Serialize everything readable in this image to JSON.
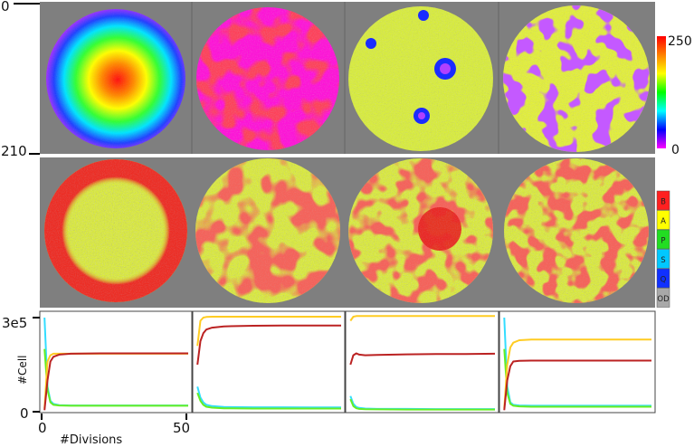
{
  "axis_labels": {
    "top_tick_0": "0",
    "top_tick_210": "210",
    "bottom_tick_3e5": "3e5",
    "bottom_tick_0": "0",
    "ylabel": "#Cell",
    "xlabel": "#Divisions",
    "x_tick_0": "0",
    "x_tick_50": "50"
  },
  "colorbar": {
    "max_label": "250",
    "min_label": "0",
    "stops": [
      "#ff00ff",
      "#0000ff",
      "#00ffff",
      "#00ff00",
      "#ffff00",
      "#ff8000",
      "#ff0000"
    ]
  },
  "category_legend": {
    "items": [
      {
        "label": "B",
        "color": "#ff2020"
      },
      {
        "label": "A",
        "color": "#ffff00"
      },
      {
        "label": "P",
        "color": "#22dd22"
      },
      {
        "label": "S",
        "color": "#00c8ff"
      },
      {
        "label": "Q",
        "color": "#1030ff"
      },
      {
        "label": "OD",
        "color": "#a8a8a8"
      }
    ]
  },
  "colors": {
    "panel_bg": "#7f7f7f",
    "S": "#33ddff",
    "P": "#66ee22",
    "A": "#ffcc22",
    "B": "#bb2222"
  },
  "chart_data": [
    {
      "type": "line",
      "panel": 1,
      "xlim": [
        0,
        50
      ],
      "ylim": [
        0,
        300000
      ],
      "legend": [
        "S",
        "P",
        "A",
        "B"
      ],
      "legend_position": "top-right",
      "series": [
        {
          "name": "S",
          "x": [
            1,
            2,
            3,
            4,
            6,
            10,
            20,
            30,
            40,
            50
          ],
          "y": [
            300000,
            80000,
            35000,
            25000,
            21000,
            20000,
            20000,
            20000,
            20000,
            20000
          ]
        },
        {
          "name": "P",
          "x": [
            1,
            2,
            3,
            4,
            6,
            10,
            20,
            30,
            40,
            50
          ],
          "y": [
            200000,
            70000,
            30000,
            22000,
            20000,
            19000,
            19000,
            19000,
            19000,
            19000
          ]
        },
        {
          "name": "A",
          "x": [
            1,
            2,
            3,
            4,
            6,
            10,
            20,
            30,
            40,
            50
          ],
          "y": [
            10000,
            160000,
            180000,
            185000,
            185000,
            185000,
            185000,
            185000,
            185000,
            185000
          ]
        },
        {
          "name": "B",
          "x": [
            1,
            2,
            3,
            4,
            6,
            10,
            20,
            30,
            40,
            50
          ],
          "y": [
            5000,
            100000,
            160000,
            175000,
            182000,
            185000,
            186000,
            186000,
            186000,
            186000
          ]
        }
      ]
    },
    {
      "type": "line",
      "panel": 2,
      "xlim": [
        0,
        50
      ],
      "ylim": [
        0,
        300000
      ],
      "series": [
        {
          "name": "S",
          "x": [
            1,
            2,
            3,
            4,
            6,
            10,
            20,
            30,
            40,
            50
          ],
          "y": [
            80000,
            45000,
            30000,
            22000,
            18000,
            15000,
            14000,
            14000,
            13500,
            13500
          ]
        },
        {
          "name": "P",
          "x": [
            1,
            2,
            3,
            4,
            6,
            10,
            20,
            30,
            40,
            50
          ],
          "y": [
            60000,
            35000,
            22000,
            16000,
            13000,
            11000,
            10000,
            10000,
            10000,
            10000
          ]
        },
        {
          "name": "A",
          "x": [
            1,
            2,
            3,
            4,
            6,
            10,
            20,
            30,
            40,
            50
          ],
          "y": [
            210000,
            290000,
            300000,
            302000,
            303000,
            303000,
            303000,
            303000,
            303000,
            303000
          ]
        },
        {
          "name": "B",
          "x": [
            1,
            2,
            3,
            4,
            6,
            10,
            20,
            30,
            40,
            50
          ],
          "y": [
            150000,
            225000,
            250000,
            262000,
            268000,
            272000,
            274000,
            275000,
            275000,
            275000
          ]
        }
      ]
    },
    {
      "type": "line",
      "panel": 3,
      "xlim": [
        0,
        50
      ],
      "ylim": [
        0,
        300000
      ],
      "series": [
        {
          "name": "S",
          "x": [
            1,
            2,
            3,
            4,
            6,
            10,
            20,
            30,
            40,
            50
          ],
          "y": [
            50000,
            25000,
            15000,
            12000,
            10000,
            9000,
            9000,
            8500,
            8500,
            8500
          ]
        },
        {
          "name": "P",
          "x": [
            1,
            2,
            3,
            4,
            6,
            10,
            20,
            30,
            40,
            50
          ],
          "y": [
            40000,
            18000,
            11000,
            9000,
            8000,
            7500,
            7000,
            7000,
            7000,
            7000
          ]
        },
        {
          "name": "A",
          "x": [
            1,
            2,
            3,
            4,
            6,
            10,
            20,
            30,
            40,
            50
          ],
          "y": [
            290000,
            303000,
            305000,
            305000,
            305000,
            305000,
            305000,
            305000,
            305000,
            305000
          ]
        },
        {
          "name": "B",
          "x": [
            1,
            2,
            3,
            4,
            6,
            10,
            20,
            30,
            40,
            50
          ],
          "y": [
            150000,
            180000,
            186000,
            182000,
            180000,
            181000,
            183000,
            184000,
            184000,
            185000
          ]
        }
      ]
    },
    {
      "type": "line",
      "panel": 4,
      "xlim": [
        0,
        50
      ],
      "ylim": [
        0,
        300000
      ],
      "series": [
        {
          "name": "S",
          "x": [
            1,
            2,
            3,
            4,
            6,
            10,
            20,
            30,
            40,
            50
          ],
          "y": [
            300000,
            80000,
            30000,
            22000,
            20000,
            19000,
            19000,
            19000,
            19000,
            19000
          ]
        },
        {
          "name": "P",
          "x": [
            1,
            2,
            3,
            4,
            6,
            10,
            20,
            30,
            40,
            50
          ],
          "y": [
            200000,
            60000,
            25000,
            19000,
            17000,
            16000,
            16000,
            16000,
            16000,
            16000
          ]
        },
        {
          "name": "A",
          "x": [
            1,
            2,
            3,
            4,
            6,
            10,
            20,
            30,
            40,
            50
          ],
          "y": [
            10000,
            150000,
            205000,
            220000,
            228000,
            230000,
            230000,
            230000,
            230000,
            230000
          ]
        },
        {
          "name": "B",
          "x": [
            1,
            2,
            3,
            4,
            6,
            10,
            20,
            30,
            40,
            50
          ],
          "y": [
            5000,
            100000,
            145000,
            160000,
            162000,
            163000,
            163000,
            163000,
            163000,
            163000
          ]
        }
      ]
    }
  ]
}
